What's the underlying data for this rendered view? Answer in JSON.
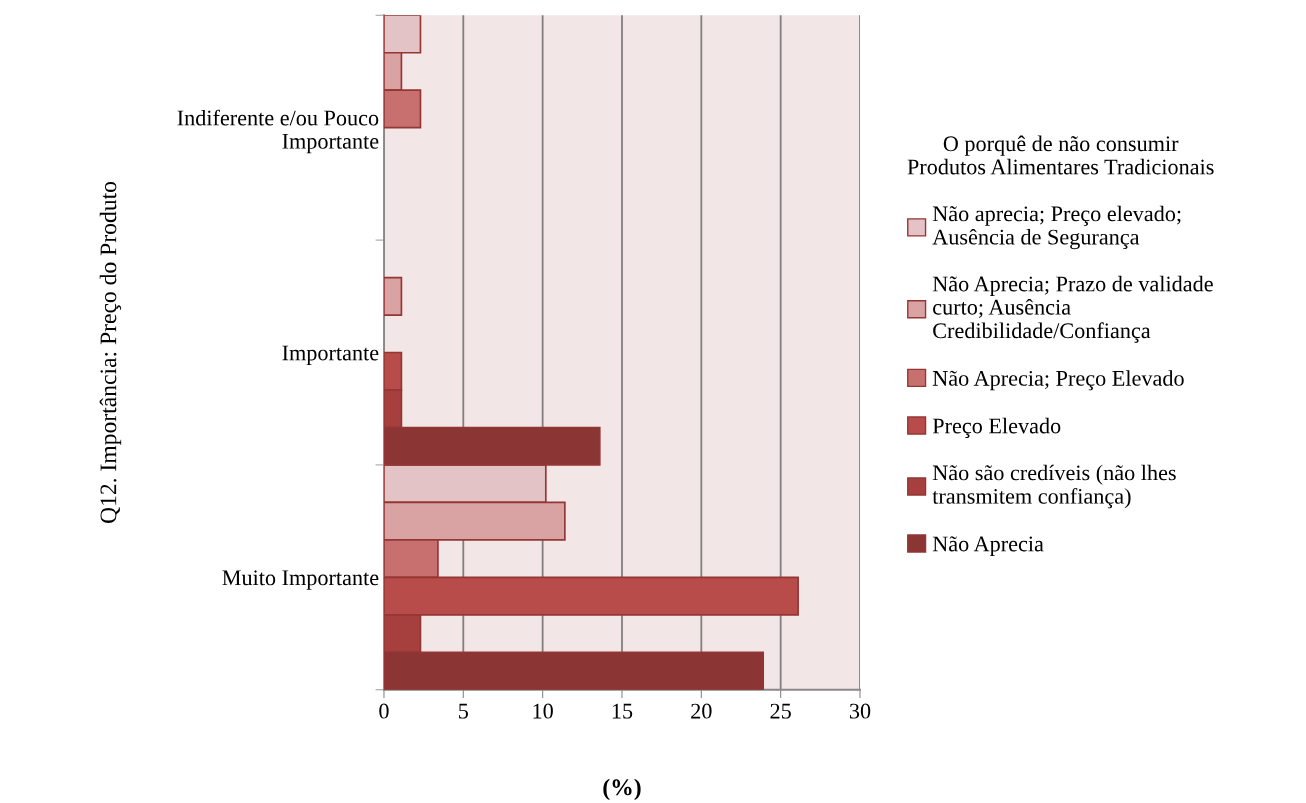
{
  "chart_data": {
    "type": "bar",
    "orientation": "horizontal",
    "ylabel": "Q12. Importância: Preço do Produto",
    "xlabel": "(%)",
    "legend_title": "O porquê de não consumir\nProdutos Alimentares Tradicionais",
    "categories": [
      "Indiferente e/ou Pouco\nImportante",
      "Importante",
      "Muito Importante"
    ],
    "series": [
      {
        "name": "Não aprecia; Preço elevado;\nAusência de Segurança",
        "color": "#e3c3c6",
        "values": [
          2.3,
          null,
          10.2
        ]
      },
      {
        "name": "Não Aprecia; Prazo de validade\ncurto; Ausência\nCredibilidade/Confiança",
        "color": "#d9a3a3",
        "values": [
          1.1,
          1.1,
          11.4
        ]
      },
      {
        "name": "Não Aprecia; Preço Elevado",
        "color": "#c87070",
        "values": [
          2.3,
          null,
          3.4
        ]
      },
      {
        "name": "Preço Elevado",
        "color": "#b84c4a",
        "values": [
          null,
          1.1,
          26.1
        ]
      },
      {
        "name": "Não são credíveis (não lhes\ntransmitem confiança)",
        "color": "#a5403e",
        "values": [
          null,
          1.1,
          2.3
        ]
      },
      {
        "name": "Não Aprecia",
        "color": "#8b3535",
        "values": [
          null,
          13.6,
          23.9
        ]
      }
    ],
    "xlim": [
      0,
      30
    ],
    "xticks": [
      0,
      5,
      10,
      15,
      20,
      25,
      30
    ],
    "grid": "x",
    "legend": "right"
  }
}
